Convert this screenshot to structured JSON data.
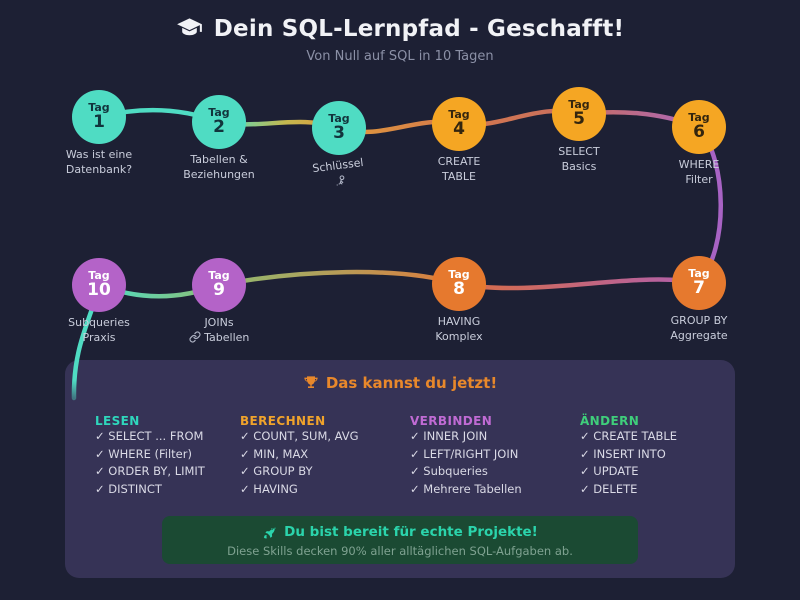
{
  "header": {
    "title": "Dein SQL-Lernpfad - Geschafft!",
    "subtitle": "Von Null auf SQL in 10 Tagen",
    "icon": "graduation-cap"
  },
  "nodes": [
    {
      "tag": "Tag",
      "num": "1",
      "color": "teal",
      "label1": "Was ist eine",
      "label2": "Datenbank?"
    },
    {
      "tag": "Tag",
      "num": "2",
      "color": "teal",
      "label1": "Tabellen &",
      "label2": "Beziehungen"
    },
    {
      "tag": "Tag",
      "num": "3",
      "color": "teal",
      "label1": "Schlüssel",
      "label2": "",
      "icon": "key"
    },
    {
      "tag": "Tag",
      "num": "4",
      "color": "amber",
      "label1": "CREATE",
      "label2": "TABLE"
    },
    {
      "tag": "Tag",
      "num": "5",
      "color": "amber",
      "label1": "SELECT",
      "label2": "Basics"
    },
    {
      "tag": "Tag",
      "num": "6",
      "color": "amber",
      "label1": "WHERE",
      "label2": "Filter"
    },
    {
      "tag": "Tag",
      "num": "7",
      "color": "orange",
      "label1": "GROUP BY",
      "label2": "Aggregate"
    },
    {
      "tag": "Tag",
      "num": "8",
      "color": "orange",
      "label1": "HAVING",
      "label2": "Komplex"
    },
    {
      "tag": "Tag",
      "num": "9",
      "color": "purple",
      "label1": "JOINs",
      "label2": "Tabellen",
      "icon": "link"
    },
    {
      "tag": "Tag",
      "num": "10",
      "color": "purple",
      "label1": "Subqueries",
      "label2": "Praxis"
    }
  ],
  "summary": {
    "title": "Das kannst du jetzt!",
    "icon": "trophy",
    "check": "✓",
    "columns": [
      {
        "header": "LESEN",
        "color": "#2fd6bc",
        "items": [
          "SELECT ... FROM",
          "WHERE (Filter)",
          "ORDER BY, LIMIT",
          "DISTINCT"
        ]
      },
      {
        "header": "BERECHNEN",
        "color": "#f0a32b",
        "items": [
          "COUNT, SUM, AVG",
          "MIN, MAX",
          "GROUP BY",
          "HAVING"
        ]
      },
      {
        "header": "VERBINDEN",
        "color": "#c06bd4",
        "items": [
          "INNER JOIN",
          "LEFT/RIGHT JOIN",
          "Subqueries",
          "Mehrere Tabellen"
        ]
      },
      {
        "header": "ÄNDERN",
        "color": "#3fce7b",
        "items": [
          "CREATE TABLE",
          "INSERT INTO",
          "UPDATE",
          "DELETE"
        ]
      }
    ],
    "banner": {
      "icon": "rocket",
      "title": "Du bist bereit für echte Projekte!",
      "subtitle": "Diese Skills decken 90% aller alltäglichen SQL-Aufgaben ab."
    }
  },
  "colors": {
    "background": "#1d2034",
    "card": "#363356",
    "banner_bg": "#1b4a33",
    "banner_title": "#2bd4ac",
    "card_title": "#e8882b",
    "node_teal": "#4fdcc3",
    "node_amber": "#f5a623",
    "node_orange": "#e6792e",
    "node_purple": "#b463c8"
  }
}
